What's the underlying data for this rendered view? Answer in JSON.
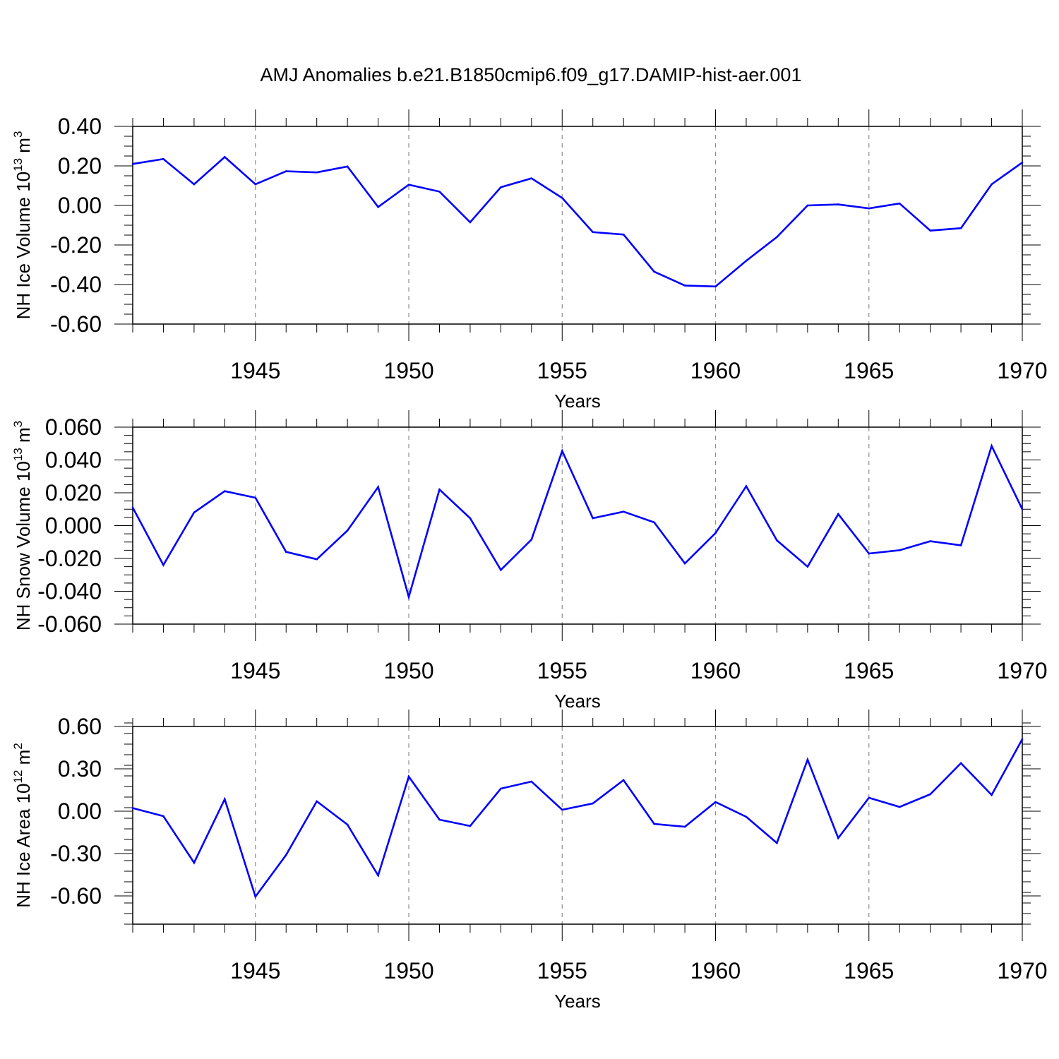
{
  "title": "AMJ Anomalies b.e21.B1850cmip6.f09_g17.DAMIP-hist-aer.001",
  "colors": {
    "line": "#0000ff",
    "axis": "#000000",
    "grid": "#8c8c8c"
  },
  "chart_data": [
    {
      "type": "line",
      "xlabel": "Years",
      "ylabel": {
        "text": "NH Ice Volume 10",
        "exp": "13",
        "unit": " m",
        "unit_exp": "3"
      },
      "xlim": [
        1941,
        1970
      ],
      "ylim": [
        -0.6,
        0.4
      ],
      "x_ticks": [
        "1945",
        "1950",
        "1955",
        "1960",
        "1965",
        "1970"
      ],
      "y_ticks": [
        "0.40",
        "0.20",
        "0.00",
        "-0.20",
        "-0.40",
        "-0.60"
      ],
      "grid": "vertical dashed at major x ticks",
      "x": [
        1941,
        1942,
        1943,
        1944,
        1945,
        1946,
        1947,
        1948,
        1949,
        1950,
        1951,
        1952,
        1953,
        1954,
        1955,
        1956,
        1957,
        1958,
        1959,
        1960,
        1961,
        1962,
        1963,
        1964,
        1965,
        1966,
        1967,
        1968,
        1969,
        1970
      ],
      "series": [
        {
          "values": [
            0.21,
            0.235,
            0.107,
            0.245,
            0.107,
            0.173,
            0.167,
            0.197,
            -0.008,
            0.105,
            0.07,
            -0.085,
            0.092,
            0.137,
            0.038,
            -0.135,
            -0.147,
            -0.335,
            -0.405,
            -0.41,
            -0.28,
            -0.16,
            0.0,
            0.005,
            -0.015,
            0.01,
            -0.127,
            -0.115,
            0.107,
            0.217
          ]
        }
      ]
    },
    {
      "type": "line",
      "xlabel": "Years",
      "ylabel": {
        "text": "NH Snow Volume 10",
        "exp": "13",
        "unit": " m",
        "unit_exp": "3"
      },
      "xlim": [
        1941,
        1970
      ],
      "ylim": [
        -0.06,
        0.06
      ],
      "x_ticks": [
        "1945",
        "1950",
        "1955",
        "1960",
        "1965",
        "1970"
      ],
      "y_ticks": [
        "0.060",
        "0.040",
        "0.020",
        "0.000",
        "-0.020",
        "-0.040",
        "-0.060"
      ],
      "grid": "vertical dashed at major x ticks",
      "x": [
        1941,
        1942,
        1943,
        1944,
        1945,
        1946,
        1947,
        1948,
        1949,
        1950,
        1951,
        1952,
        1953,
        1954,
        1955,
        1956,
        1957,
        1958,
        1959,
        1960,
        1961,
        1962,
        1963,
        1964,
        1965,
        1966,
        1967,
        1968,
        1969,
        1970
      ],
      "series": [
        {
          "values": [
            0.011,
            -0.024,
            0.008,
            0.021,
            0.017,
            -0.016,
            -0.0205,
            -0.003,
            0.0235,
            -0.0435,
            0.022,
            0.0045,
            -0.027,
            -0.0085,
            0.0455,
            0.0045,
            0.0085,
            0.002,
            -0.023,
            -0.0045,
            0.024,
            -0.009,
            -0.025,
            0.007,
            -0.017,
            -0.015,
            -0.0095,
            -0.012,
            0.0485,
            0.01
          ]
        }
      ]
    },
    {
      "type": "line",
      "xlabel": "Years",
      "ylabel": {
        "text": "NH Ice Area 10",
        "exp": "12",
        "unit": " m",
        "unit_exp": "2"
      },
      "xlim": [
        1941,
        1970
      ],
      "ylim": [
        -0.8,
        0.6
      ],
      "x_ticks": [
        "1945",
        "1950",
        "1955",
        "1960",
        "1965",
        "1970"
      ],
      "y_ticks": [
        "0.60",
        "0.30",
        "0.00",
        "-0.30",
        "-0.60"
      ],
      "grid": "vertical dashed at major x ticks",
      "x": [
        1941,
        1942,
        1943,
        1944,
        1945,
        1946,
        1947,
        1948,
        1949,
        1950,
        1951,
        1952,
        1953,
        1954,
        1955,
        1956,
        1957,
        1958,
        1959,
        1960,
        1961,
        1962,
        1963,
        1964,
        1965,
        1966,
        1967,
        1968,
        1969,
        1970
      ],
      "series": [
        {
          "values": [
            0.022,
            -0.035,
            -0.365,
            0.085,
            -0.605,
            -0.31,
            0.07,
            -0.095,
            -0.455,
            0.245,
            -0.06,
            -0.105,
            0.16,
            0.21,
            0.01,
            0.055,
            0.22,
            -0.09,
            -0.11,
            0.065,
            -0.04,
            -0.225,
            0.365,
            -0.19,
            0.095,
            0.03,
            0.12,
            0.34,
            0.115,
            0.51
          ]
        }
      ]
    }
  ]
}
